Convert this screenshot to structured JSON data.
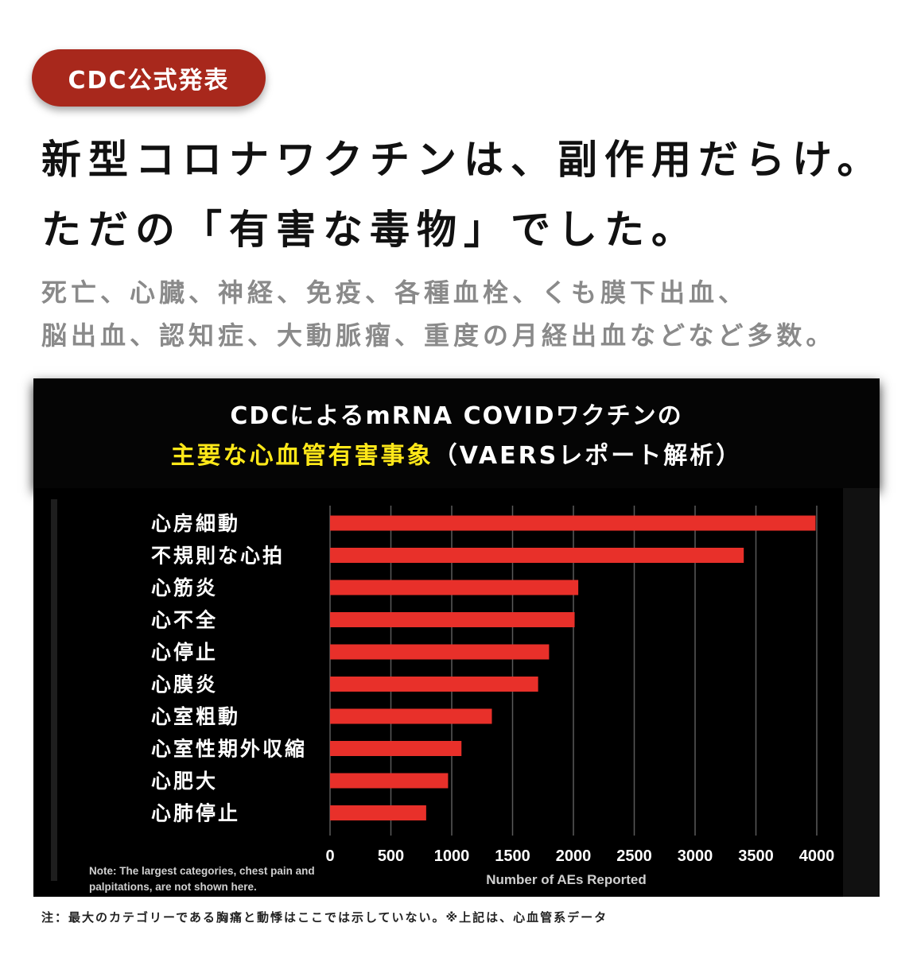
{
  "badge": "CDC公式発表",
  "headline": {
    "line1": "新型コロナワクチンは、副作用だらけ。",
    "line2": "ただの「有害な毒物」でした。"
  },
  "subtext": {
    "line1": "死亡、心臓、神経、免疫、各種血栓、くも膜下出血、",
    "line2": "脳出血、認知症、大動脈瘤、重度の月経出血などなど多数。"
  },
  "chart_title": {
    "line1": "CDCによるmRNA COVIDワクチンの",
    "line2_highlight": "主要な心血管有害事象",
    "line2_rest": "（VAERSレポート解析）"
  },
  "chart_note": "Note: The largest categories, chest pain and palpitations, are not shown here.",
  "footnote": "注：最大のカテゴリーである胸痛と動悸はここでは示していない。※上記は、心血管系データ",
  "colors": {
    "badge": "#a8281c",
    "bar": "#e8302a",
    "highlight": "#ffe819"
  },
  "chart_data": {
    "type": "bar",
    "orientation": "horizontal",
    "categories": [
      "心房細動",
      "不規則な心拍",
      "心筋炎",
      "心不全",
      "心停止",
      "心膜炎",
      "心室粗動",
      "心室性期外収縮",
      "心肥大",
      "心肺停止"
    ],
    "values": [
      3990,
      3400,
      2040,
      2010,
      1800,
      1710,
      1330,
      1080,
      970,
      790
    ],
    "xlabel": "Number of AEs Reported",
    "xlim": [
      0,
      4000
    ],
    "xticks": [
      "0",
      "500",
      "1000",
      "1500",
      "2000",
      "2500",
      "3000",
      "3500",
      "4000"
    ],
    "grid": "vertical"
  }
}
